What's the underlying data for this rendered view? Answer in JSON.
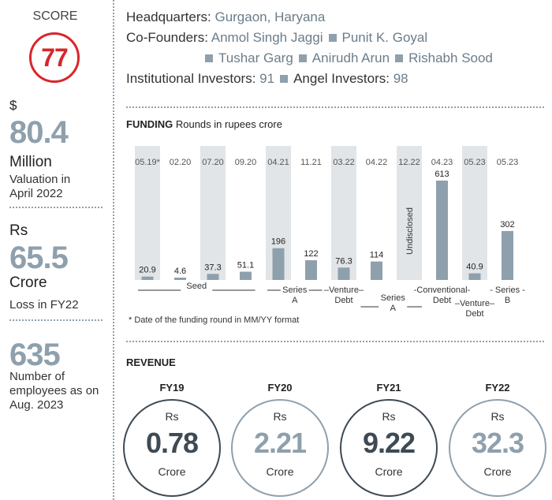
{
  "score": {
    "label": "SCORE",
    "value": "77"
  },
  "valuation": {
    "currency": "$",
    "value": "80.4",
    "unit": "Million",
    "caption_line1": "Valuation in",
    "caption_line2": "April 2022"
  },
  "loss": {
    "currency": "Rs",
    "value": "65.5",
    "unit": "Crore",
    "caption": "Loss in FY22"
  },
  "employees": {
    "value": "635",
    "caption_line1": "Number of",
    "caption_line2": "employees as on",
    "caption_line3": "Aug. 2023"
  },
  "info": {
    "hq_label": "Headquarters:",
    "hq_value": "Gurgaon, Haryana",
    "cofounders_label": "Co-Founders:",
    "cofounders": [
      "Anmol Singh Jaggi",
      "Punit K. Goyal",
      "Tushar Garg",
      "Anirudh Arun",
      "Rishabh Sood"
    ],
    "institutional_label": "Institutional Investors:",
    "institutional_value": "91",
    "angel_label": "Angel Investors:",
    "angel_value": "98"
  },
  "funding": {
    "title_bold": "FUNDING",
    "title_rest": "Rounds in rupees crore",
    "note": "* Date of the funding round in MM/YY format"
  },
  "chart_data": {
    "type": "bar",
    "title": "FUNDING Rounds in rupees crore",
    "categories": [
      "05.19*",
      "02.20",
      "07.20",
      "09.20",
      "04.21",
      "11.21",
      "03.22",
      "04.22",
      "12.22",
      "04.23",
      "05.23",
      "05.23"
    ],
    "value_labels": [
      "20.9",
      "4.6",
      "37.3",
      "51.1",
      "196",
      "122",
      "76.3",
      "114",
      "Undisclosed",
      "613",
      "40.9",
      "302"
    ],
    "series": [
      {
        "values": [
          20.9,
          4.6,
          37.3,
          51.1,
          196,
          122,
          76.3,
          114,
          null,
          613,
          40.9,
          302
        ]
      }
    ],
    "shaded_columns": [
      0,
      2,
      4,
      6,
      8,
      10
    ],
    "round_labels": [
      {
        "text": "Seed",
        "from": 0,
        "to": 3
      },
      {
        "text": "Series A",
        "from": 4,
        "to": 5
      },
      {
        "text": "Venture Debt",
        "from": 6,
        "to": 6
      },
      {
        "text": "Series A",
        "from": 7,
        "to": 8
      },
      {
        "text": "Conventional Debt",
        "from": 9,
        "to": 9
      },
      {
        "text": "Venture Debt",
        "from": 10,
        "to": 10
      },
      {
        "text": "Series B",
        "from": 11,
        "to": 11
      }
    ],
    "colors": {
      "bar": "#8fa0ad",
      "shade": "#e1e5e8"
    }
  },
  "revenue": {
    "title": "REVENUE",
    "currency": "Rs",
    "unit": "Crore",
    "items": [
      {
        "year": "FY19",
        "value": "0.78",
        "style": "dark"
      },
      {
        "year": "FY20",
        "value": "2.21",
        "style": "light"
      },
      {
        "year": "FY21",
        "value": "9.22",
        "style": "dark"
      },
      {
        "year": "FY22",
        "value": "32.3",
        "style": "light"
      }
    ]
  }
}
